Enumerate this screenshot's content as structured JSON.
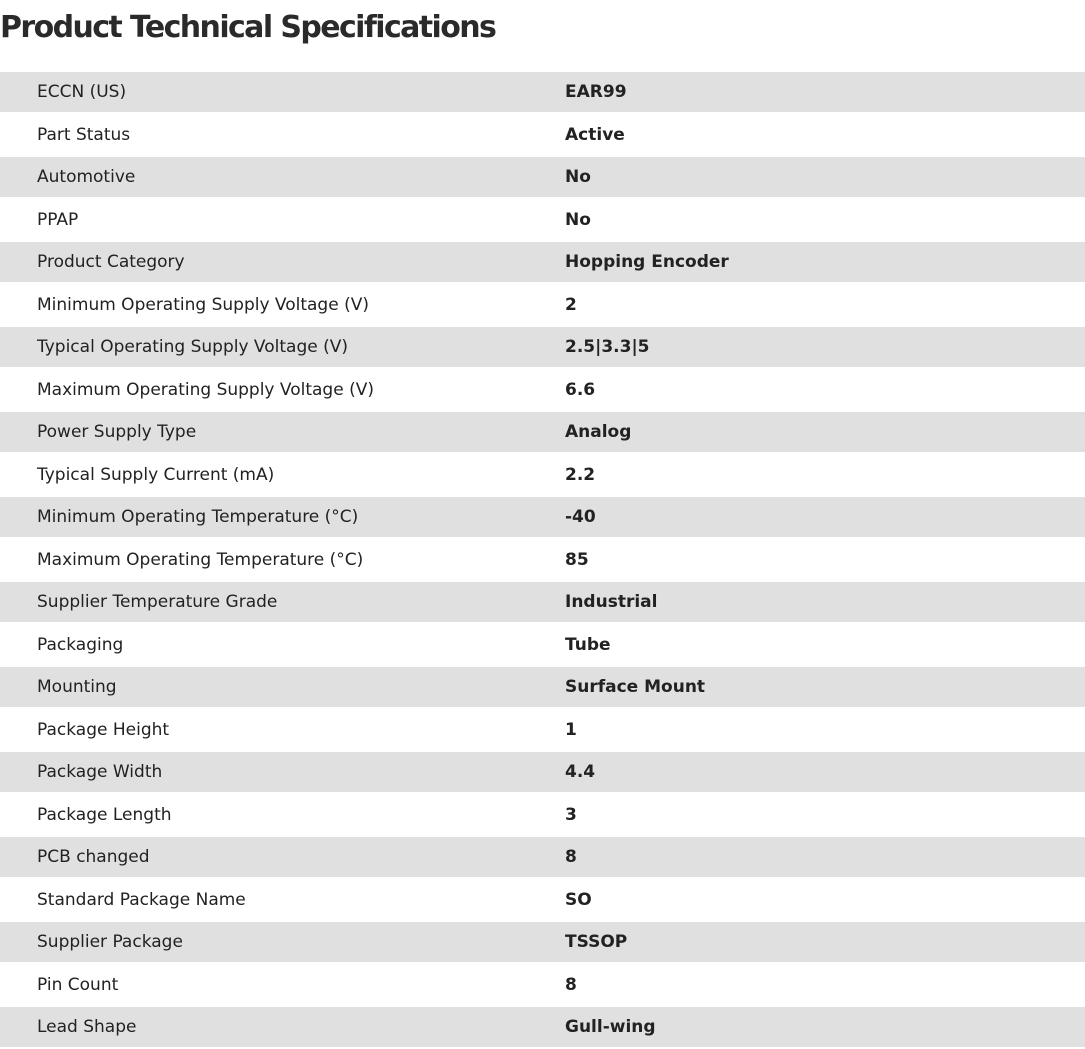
{
  "header": {
    "title": "Product Technical Specifications"
  },
  "table": {
    "rows": [
      [
        "ECCN (US)",
        "EAR99"
      ],
      [
        "Part Status",
        "Active"
      ],
      [
        "Automotive",
        "No"
      ],
      [
        "PPAP",
        "No"
      ],
      [
        "Product Category",
        "Hopping Encoder"
      ],
      [
        "Minimum Operating Supply Voltage (V)",
        "2"
      ],
      [
        "Typical Operating Supply Voltage (V)",
        "2.5|3.3|5"
      ],
      [
        "Maximum Operating Supply Voltage (V)",
        "6.6"
      ],
      [
        "Power Supply Type",
        "Analog"
      ],
      [
        "Typical Supply Current (mA)",
        "2.2"
      ],
      [
        "Minimum Operating Temperature (°C)",
        "-40"
      ],
      [
        "Maximum Operating Temperature (°C)",
        "85"
      ],
      [
        "Supplier Temperature Grade",
        "Industrial"
      ],
      [
        "Packaging",
        "Tube"
      ],
      [
        "Mounting",
        "Surface Mount"
      ],
      [
        "Package Height",
        "1"
      ],
      [
        "Package Width",
        "4.4"
      ],
      [
        "Package Length",
        "3"
      ],
      [
        "PCB changed",
        "8"
      ],
      [
        "Standard Package Name",
        "SO"
      ],
      [
        "Supplier Package",
        "TSSOP"
      ],
      [
        "Pin Count",
        "8"
      ],
      [
        "Lead Shape",
        "Gull-wing"
      ]
    ]
  }
}
